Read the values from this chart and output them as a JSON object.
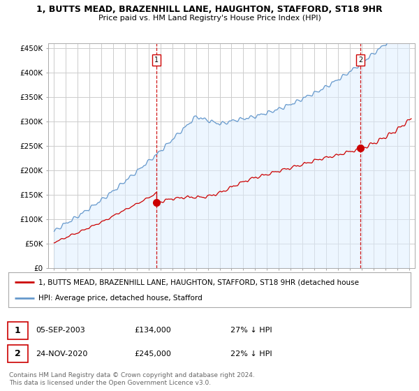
{
  "title": "1, BUTTS MEAD, BRAZENHILL LANE, HAUGHTON, STAFFORD, ST18 9HR",
  "subtitle": "Price paid vs. HM Land Registry's House Price Index (HPI)",
  "ylabel_ticks": [
    "£0",
    "£50K",
    "£100K",
    "£150K",
    "£200K",
    "£250K",
    "£300K",
    "£350K",
    "£400K",
    "£450K"
  ],
  "ytick_vals": [
    0,
    50000,
    100000,
    150000,
    200000,
    250000,
    300000,
    350000,
    400000,
    450000
  ],
  "ylim": [
    0,
    460000
  ],
  "xlim_start": 1994.5,
  "xlim_end": 2025.5,
  "purchase1_x": 2003.68,
  "purchase1_y": 134000,
  "purchase2_x": 2020.9,
  "purchase2_y": 245000,
  "property_color": "#cc0000",
  "hpi_color": "#6699cc",
  "hpi_fill_color": "#ddeeff",
  "background_color": "#ffffff",
  "grid_color": "#cccccc",
  "legend_line1": "1, BUTTS MEAD, BRAZENHILL LANE, HAUGHTON, STAFFORD, ST18 9HR (detached house",
  "legend_line2": "HPI: Average price, detached house, Stafford",
  "table_rows": [
    {
      "num": "1",
      "date": "05-SEP-2003",
      "price": "£134,000",
      "pct": "27% ↓ HPI"
    },
    {
      "num": "2",
      "date": "24-NOV-2020",
      "price": "£245,000",
      "pct": "22% ↓ HPI"
    }
  ],
  "footnote": "Contains HM Land Registry data © Crown copyright and database right 2024.\nThis data is licensed under the Open Government Licence v3.0."
}
